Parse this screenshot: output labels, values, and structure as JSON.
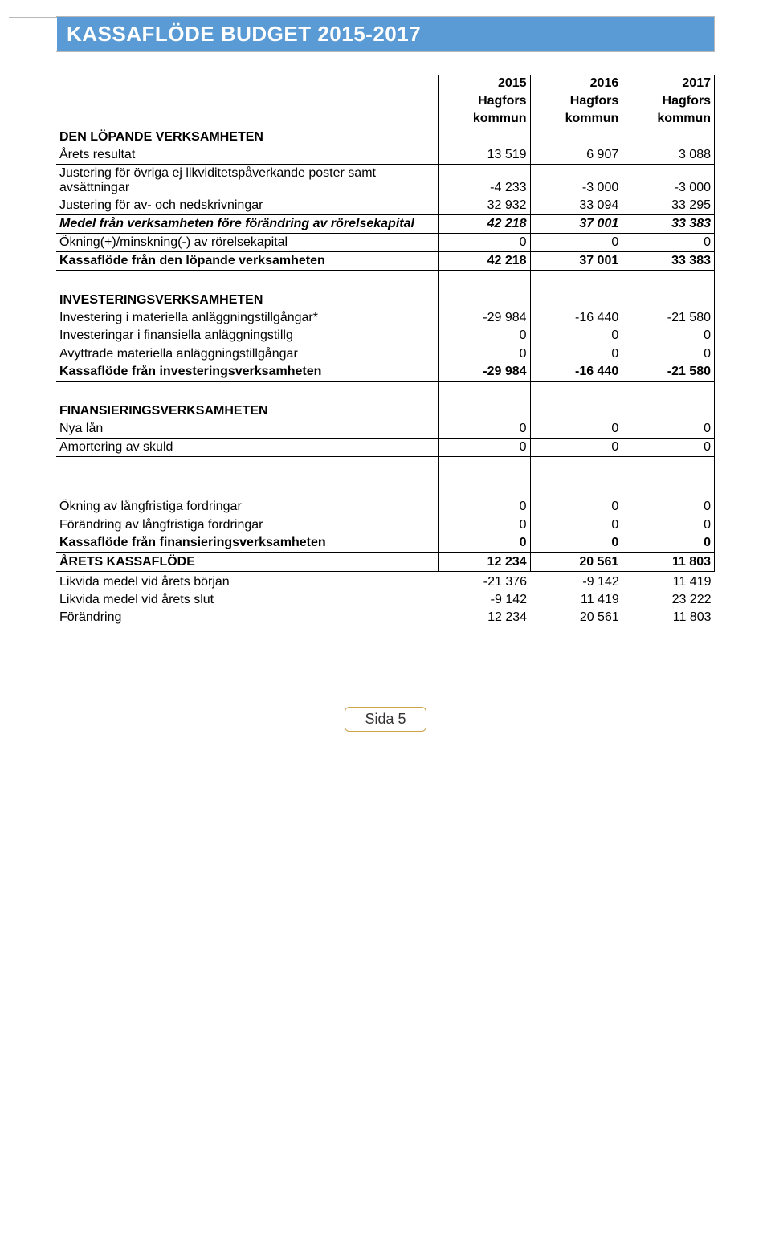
{
  "banner": {
    "title": "KASSAFLÖDE BUDGET 2015-2017"
  },
  "header": {
    "y1a": "2015",
    "y1b": "Hagfors",
    "y1c": "kommun",
    "y2a": "2016",
    "y2b": "Hagfors",
    "y2c": "kommun",
    "y3a": "2017",
    "y3b": "Hagfors",
    "y3c": "kommun"
  },
  "rows": {
    "s1": "DEN LÖPANDE VERKSAMHETEN",
    "r1": {
      "l": "Årets resultat",
      "a": "13 519",
      "b": "6 907",
      "c": "3 088"
    },
    "r2": {
      "l": "Justering för övriga ej likviditetspåverkande poster samt avsättningar",
      "a": "-4 233",
      "b": "-3 000",
      "c": "-3 000"
    },
    "r3": {
      "l": "Justering för av- och nedskrivningar",
      "a": "32 932",
      "b": "33 094",
      "c": "33 295"
    },
    "r4": {
      "l": "Medel från verksamheten före förändring av rörelsekapital",
      "a": "42 218",
      "b": "37 001",
      "c": "33 383"
    },
    "r5": {
      "l": "Ökning(+)/minskning(-) av rörelsekapital",
      "a": "0",
      "b": "0",
      "c": "0"
    },
    "r6": {
      "l": "Kassaflöde från den löpande verksamheten",
      "a": "42 218",
      "b": "37 001",
      "c": "33 383"
    },
    "s2": "INVESTERINGSVERKSAMHETEN",
    "r7": {
      "l": "Investering i materiella anläggningstillgångar*",
      "a": "-29 984",
      "b": "-16 440",
      "c": "-21 580"
    },
    "r8": {
      "l": "Investeringar i finansiella anläggningstillg",
      "a": "0",
      "b": "0",
      "c": "0"
    },
    "r9": {
      "l": "Avyttrade materiella anläggningstillgångar",
      "a": "0",
      "b": "0",
      "c": "0"
    },
    "r10": {
      "l": "Kassaflöde från investeringsverksamheten",
      "a": "-29 984",
      "b": "-16 440",
      "c": "-21 580"
    },
    "s3": "FINANSIERINGSVERKSAMHETEN",
    "r11": {
      "l": "Nya lån",
      "a": "0",
      "b": "0",
      "c": "0"
    },
    "r12": {
      "l": "Amortering av skuld",
      "a": "0",
      "b": "0",
      "c": "0"
    },
    "r13": {
      "l": "Ökning av långfristiga fordringar",
      "a": "0",
      "b": "0",
      "c": "0"
    },
    "r14": {
      "l": "Förändring av långfristiga fordringar",
      "a": "0",
      "b": "0",
      "c": "0"
    },
    "r15": {
      "l": "Kassaflöde från finansieringsverksamheten",
      "a": "0",
      "b": "0",
      "c": "0"
    },
    "r16": {
      "l": "ÅRETS KASSAFLÖDE",
      "a": "12 234",
      "b": "20 561",
      "c": "11 803"
    },
    "r17": {
      "l": "Likvida medel vid årets början",
      "a": "-21 376",
      "b": "-9 142",
      "c": "11 419"
    },
    "r18": {
      "l": "Likvida medel vid årets slut",
      "a": "-9 142",
      "b": "11 419",
      "c": "23 222"
    },
    "r19": {
      "l": "Förändring",
      "a": "12 234",
      "b": "20 561",
      "c": "11 803"
    }
  },
  "footer": {
    "page_label": "Sida 5"
  },
  "colors": {
    "banner_bg": "#5b9bd5",
    "banner_text": "#ffffff",
    "border": "#000000",
    "footer_border": "#cfa34a"
  }
}
